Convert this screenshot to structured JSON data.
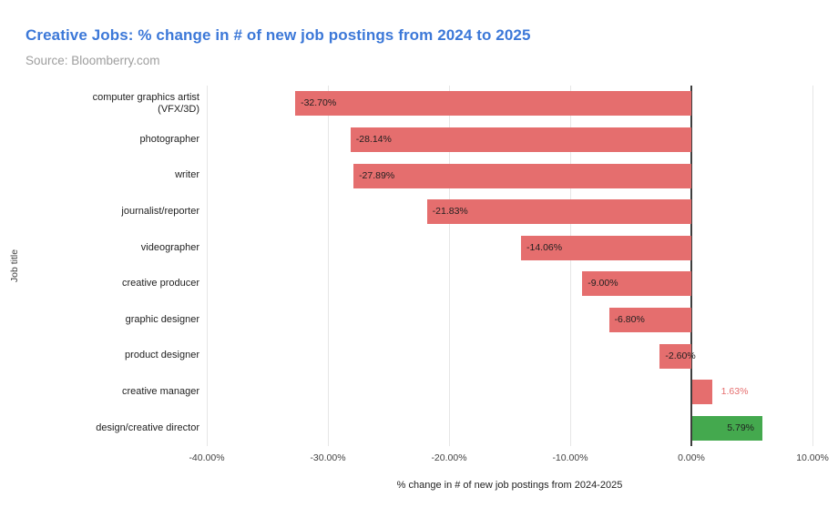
{
  "header": {
    "title": "Creative Jobs: % change in # of new job postings from 2024 to 2025",
    "source": "Source: Bloomberry.com",
    "title_color": "#3c78d8",
    "source_color": "#9e9e9e"
  },
  "chart_data": {
    "type": "bar",
    "orientation": "horizontal",
    "title": "Creative Jobs: % change in # of new job postings from 2024 to 2025",
    "source": "Source: Bloomberry.com",
    "xlabel": "% change in # of new job postings from 2024-2025",
    "ylabel": "Job title",
    "xlim": [
      -40,
      10
    ],
    "grid": true,
    "legend": "none",
    "colors": {
      "negative": "#e56e6e",
      "positive": "#44a94e",
      "gridline": "#e6e6e6",
      "zero_axis": "#3d3d3d"
    },
    "x_ticks": [
      {
        "value": -40,
        "label": "-40.00%"
      },
      {
        "value": -30,
        "label": "-30.00%"
      },
      {
        "value": -20,
        "label": "-20.00%"
      },
      {
        "value": -10,
        "label": "-10.00%"
      },
      {
        "value": 0,
        "label": "0.00%"
      },
      {
        "value": 10,
        "label": "10.00%"
      }
    ],
    "points": [
      {
        "label": "computer graphics artist (VFX/3D)",
        "value": -32.7,
        "display": "-32.70%",
        "color": "#e56e6e"
      },
      {
        "label": "photographer",
        "value": -28.14,
        "display": "-28.14%",
        "color": "#e56e6e"
      },
      {
        "label": "writer",
        "value": -27.89,
        "display": "-27.89%",
        "color": "#e56e6e"
      },
      {
        "label": "journalist/reporter",
        "value": -21.83,
        "display": "-21.83%",
        "color": "#e56e6e"
      },
      {
        "label": "videographer",
        "value": -14.06,
        "display": "-14.06%",
        "color": "#e56e6e"
      },
      {
        "label": "creative producer",
        "value": -9.0,
        "display": "-9.00%",
        "color": "#e56e6e"
      },
      {
        "label": "graphic designer",
        "value": -6.8,
        "display": "-6.80%",
        "color": "#e56e6e"
      },
      {
        "label": "product designer",
        "value": -2.6,
        "display": "-2.60%",
        "color": "#e56e6e"
      },
      {
        "label": "creative manager",
        "value": 1.63,
        "display": "1.63%",
        "color": "#e56e6e"
      },
      {
        "label": "design/creative director",
        "value": 5.79,
        "display": "5.79%",
        "color": "#44a94e"
      }
    ]
  }
}
